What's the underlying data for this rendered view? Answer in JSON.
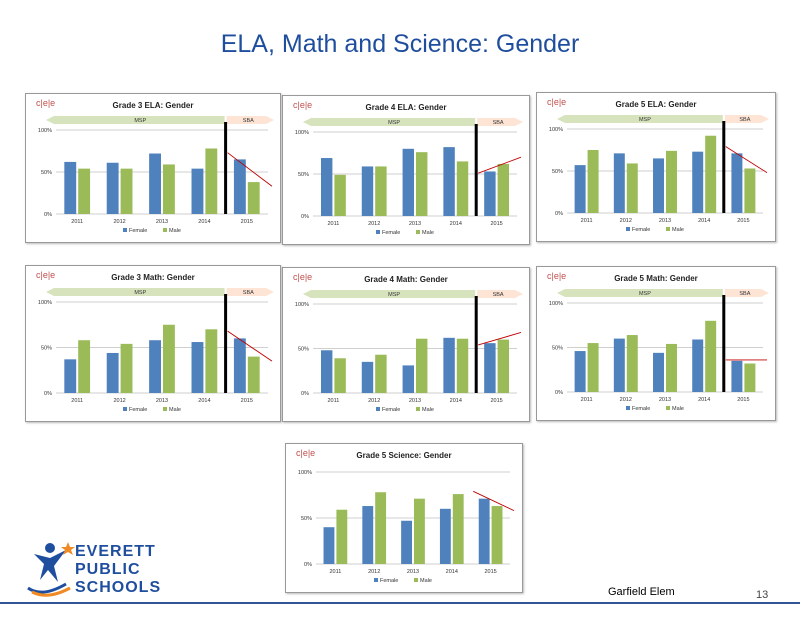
{
  "page": {
    "title": "ELA, Math and Science: Gender",
    "school": "Garfield Elem",
    "page_number": "13",
    "logo_lines": [
      "EVERETT",
      "PUBLIC",
      "SCHOOLS"
    ],
    "colors": {
      "female": "#4f81bd",
      "male": "#9bbb59",
      "title": "#1f4e9e",
      "msp_arrow": "#d6e3bc",
      "sba_arrow": "#fde4d4",
      "cut_line": "#000000",
      "trend": "#c00000"
    }
  },
  "chart_data": [
    {
      "type": "bar",
      "title": "Grade 3 ELA: Gender",
      "categories": [
        "2011",
        "2012",
        "2013",
        "2014",
        "2015"
      ],
      "series": [
        {
          "name": "Female",
          "values": [
            62,
            61,
            72,
            54,
            65
          ]
        },
        {
          "name": "Male",
          "values": [
            54,
            54,
            59,
            78,
            38
          ]
        }
      ],
      "yticks": [
        "0%",
        "50%",
        "100%"
      ],
      "ylim": [
        0,
        100
      ],
      "msp_label": "MSP",
      "sba_label": "SBA",
      "trend": "down"
    },
    {
      "type": "bar",
      "title": "Grade 4 ELA: Gender",
      "categories": [
        "2011",
        "2012",
        "2013",
        "2014",
        "2015"
      ],
      "series": [
        {
          "name": "Female",
          "values": [
            69,
            59,
            80,
            82,
            53
          ]
        },
        {
          "name": "Male",
          "values": [
            49,
            59,
            76,
            65,
            62
          ]
        }
      ],
      "yticks": [
        "0%",
        "50%",
        "100%"
      ],
      "ylim": [
        0,
        100
      ],
      "msp_label": "MSP",
      "sba_label": "SBA",
      "trend": "up"
    },
    {
      "type": "bar",
      "title": "Grade 5 ELA: Gender",
      "categories": [
        "2011",
        "2012",
        "2013",
        "2014",
        "2015"
      ],
      "series": [
        {
          "name": "Female",
          "values": [
            57,
            71,
            65,
            73,
            71
          ]
        },
        {
          "name": "Male",
          "values": [
            75,
            59,
            74,
            92,
            53
          ]
        }
      ],
      "yticks": [
        "0%",
        "50%",
        "100%"
      ],
      "ylim": [
        0,
        100
      ],
      "msp_label": "MSP",
      "sba_label": "SBA",
      "trend": "down"
    },
    {
      "type": "bar",
      "title": "Grade 3 Math: Gender",
      "categories": [
        "2011",
        "2012",
        "2013",
        "2014",
        "2015"
      ],
      "series": [
        {
          "name": "Female",
          "values": [
            37,
            44,
            58,
            56,
            60
          ]
        },
        {
          "name": "Male",
          "values": [
            58,
            54,
            75,
            70,
            40
          ]
        }
      ],
      "yticks": [
        "0%",
        "50%",
        "100%"
      ],
      "ylim": [
        0,
        100
      ],
      "msp_label": "MSP",
      "sba_label": "SBA",
      "trend": "down"
    },
    {
      "type": "bar",
      "title": "Grade 4 Math: Gender",
      "categories": [
        "2011",
        "2012",
        "2013",
        "2014",
        "2015"
      ],
      "series": [
        {
          "name": "Female",
          "values": [
            48,
            35,
            31,
            62,
            56
          ]
        },
        {
          "name": "Male",
          "values": [
            39,
            43,
            61,
            61,
            60
          ]
        }
      ],
      "yticks": [
        "0%",
        "50%",
        "100%"
      ],
      "ylim": [
        0,
        100
      ],
      "msp_label": "MSP",
      "sba_label": "SBA",
      "trend": "up"
    },
    {
      "type": "bar",
      "title": "Grade 5 Math: Gender",
      "categories": [
        "2011",
        "2012",
        "2013",
        "2014",
        "2015"
      ],
      "series": [
        {
          "name": "Female",
          "values": [
            46,
            60,
            44,
            59,
            35
          ]
        },
        {
          "name": "Male",
          "values": [
            55,
            64,
            54,
            80,
            32
          ]
        }
      ],
      "yticks": [
        "0%",
        "50%",
        "100%"
      ],
      "ylim": [
        0,
        100
      ],
      "msp_label": "MSP",
      "sba_label": "SBA",
      "trend": "flat"
    },
    {
      "type": "bar",
      "title": "Grade 5 Science: Gender",
      "categories": [
        "2011",
        "2012",
        "2013",
        "2014",
        "2015"
      ],
      "series": [
        {
          "name": "Female",
          "values": [
            40,
            63,
            47,
            60,
            71
          ]
        },
        {
          "name": "Male",
          "values": [
            59,
            78,
            71,
            76,
            63
          ]
        }
      ],
      "yticks": [
        "0%",
        "50%",
        "100%"
      ],
      "ylim": [
        0,
        100
      ],
      "trend": "down"
    }
  ]
}
